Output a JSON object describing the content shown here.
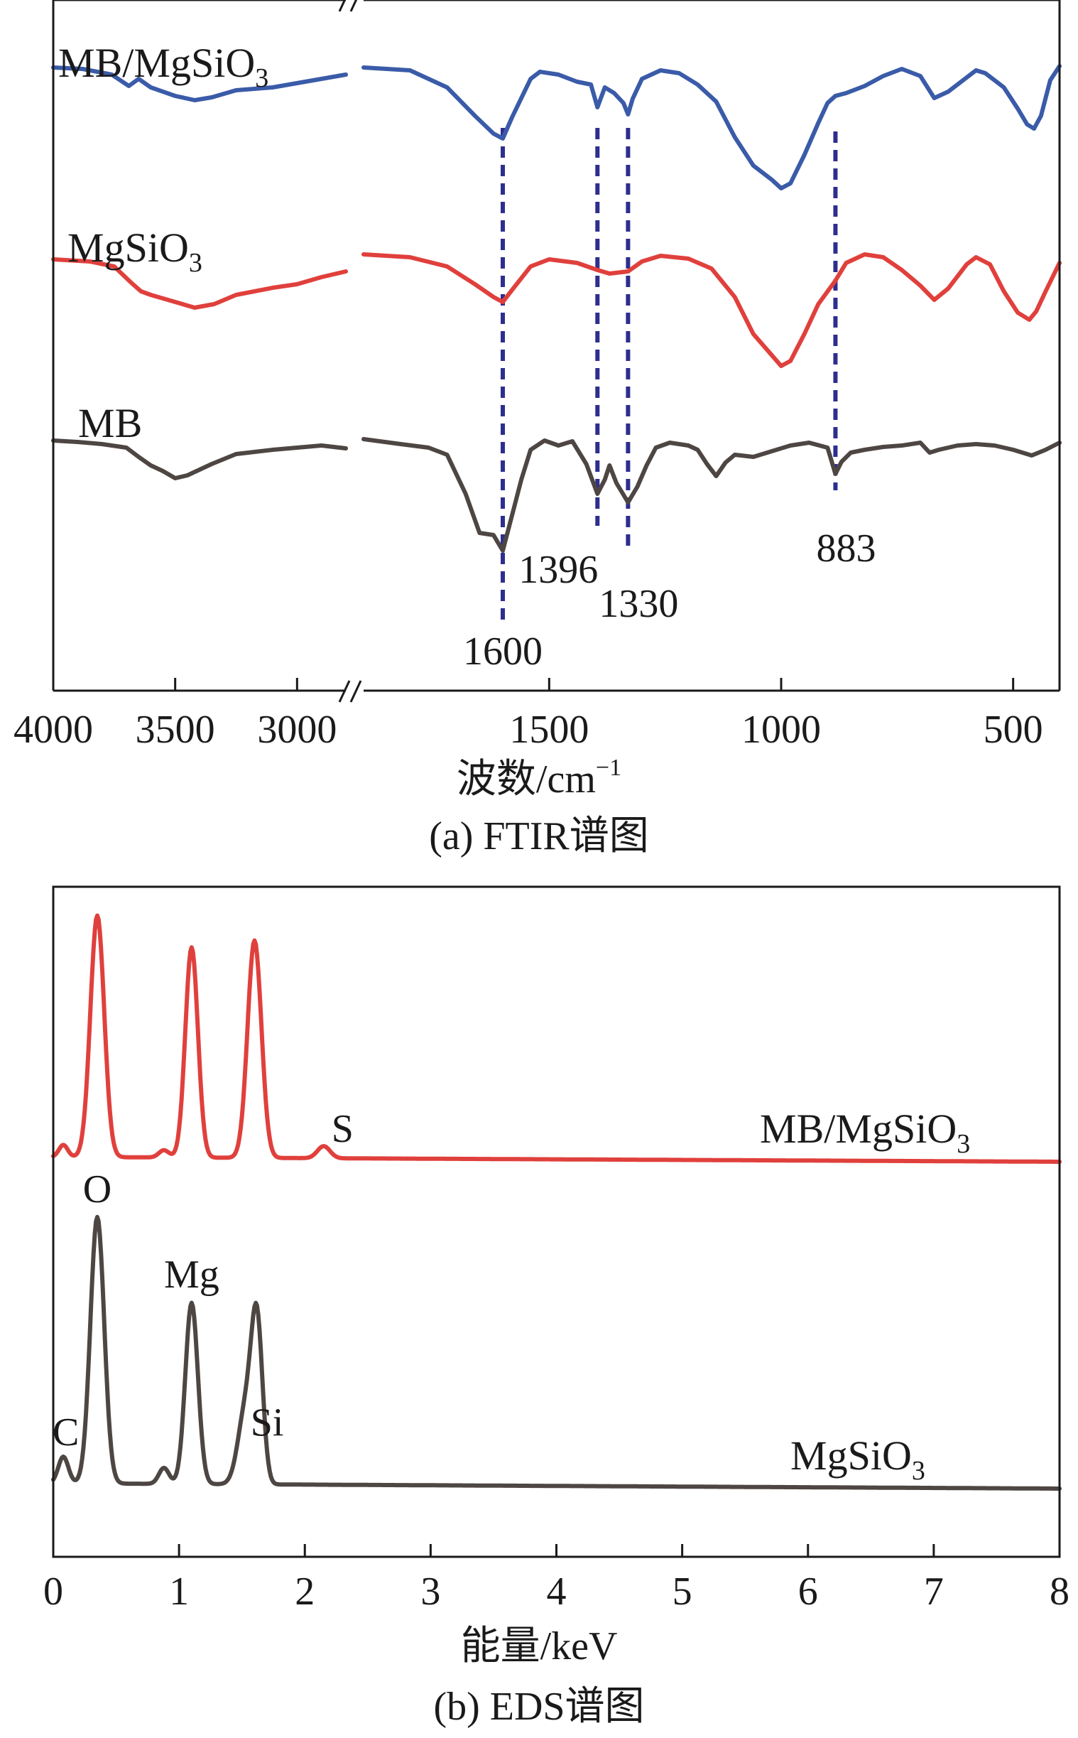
{
  "chart_data": [
    {
      "type": "line",
      "chart": "FTIR",
      "caption": "(a) FTIR谱图",
      "xlabel": "波数/cm",
      "xlabel_sup": "−1",
      "x_ticks": [
        "4000",
        "3500",
        "3000",
        "1500",
        "1000",
        "500"
      ],
      "x_tick_values": [
        4000,
        3500,
        3000,
        1500,
        1000,
        500
      ],
      "x_segments": [
        [
          4000,
          2800
        ],
        [
          1900,
          400
        ]
      ],
      "axis_break": "//",
      "series": [
        {
          "name": "MB/MgSiO",
          "sub": "3",
          "color": "#3a5ba8",
          "points": [
            [
              4000,
              12
            ],
            [
              3880,
              14
            ],
            [
              3760,
              22
            ],
            [
              3690,
              38
            ],
            [
              3650,
              28
            ],
            [
              3600,
              40
            ],
            [
              3500,
              52
            ],
            [
              3420,
              58
            ],
            [
              3350,
              54
            ],
            [
              3250,
              44
            ],
            [
              3100,
              40
            ],
            [
              3000,
              34
            ],
            [
              2900,
              28
            ],
            [
              2800,
              22
            ],
            [
              1900,
              12
            ],
            [
              1800,
              16
            ],
            [
              1720,
              40
            ],
            [
              1660,
              80
            ],
            [
              1620,
              105
            ],
            [
              1600,
              112
            ],
            [
              1580,
              82
            ],
            [
              1540,
              28
            ],
            [
              1520,
              18
            ],
            [
              1480,
              22
            ],
            [
              1440,
              32
            ],
            [
              1410,
              36
            ],
            [
              1396,
              68
            ],
            [
              1380,
              40
            ],
            [
              1360,
              48
            ],
            [
              1340,
              62
            ],
            [
              1330,
              78
            ],
            [
              1320,
              56
            ],
            [
              1300,
              28
            ],
            [
              1260,
              16
            ],
            [
              1220,
              20
            ],
            [
              1180,
              36
            ],
            [
              1140,
              60
            ],
            [
              1100,
              110
            ],
            [
              1060,
              150
            ],
            [
              1020,
              170
            ],
            [
              1000,
              182
            ],
            [
              980,
              175
            ],
            [
              950,
              135
            ],
            [
              920,
              90
            ],
            [
              900,
              62
            ],
            [
              883,
              52
            ],
            [
              860,
              48
            ],
            [
              820,
              38
            ],
            [
              780,
              24
            ],
            [
              740,
              14
            ],
            [
              700,
              24
            ],
            [
              670,
              55
            ],
            [
              640,
              46
            ],
            [
              600,
              26
            ],
            [
              580,
              16
            ],
            [
              560,
              20
            ],
            [
              520,
              40
            ],
            [
              490,
              70
            ],
            [
              470,
              92
            ],
            [
              455,
              98
            ],
            [
              440,
              80
            ],
            [
              420,
              30
            ],
            [
              400,
              10
            ]
          ]
        },
        {
          "name": "MgSiO",
          "sub": "3",
          "color": "#e0403c",
          "points": [
            [
              4000,
              195
            ],
            [
              3850,
              198
            ],
            [
              3750,
              205
            ],
            [
              3680,
              228
            ],
            [
              3640,
              240
            ],
            [
              3600,
              245
            ],
            [
              3500,
              255
            ],
            [
              3420,
              263
            ],
            [
              3340,
              258
            ],
            [
              3250,
              245
            ],
            [
              3100,
              235
            ],
            [
              3000,
              230
            ],
            [
              2900,
              220
            ],
            [
              2800,
              212
            ],
            [
              1900,
              188
            ],
            [
              1800,
              192
            ],
            [
              1720,
              205
            ],
            [
              1660,
              230
            ],
            [
              1620,
              248
            ],
            [
              1600,
              255
            ],
            [
              1580,
              238
            ],
            [
              1540,
              205
            ],
            [
              1500,
              195
            ],
            [
              1440,
              200
            ],
            [
              1396,
              210
            ],
            [
              1370,
              215
            ],
            [
              1330,
              212
            ],
            [
              1300,
              198
            ],
            [
              1260,
              190
            ],
            [
              1200,
              194
            ],
            [
              1150,
              208
            ],
            [
              1100,
              248
            ],
            [
              1060,
              300
            ],
            [
              1020,
              330
            ],
            [
              1000,
              345
            ],
            [
              980,
              338
            ],
            [
              950,
              300
            ],
            [
              920,
              258
            ],
            [
              883,
              225
            ],
            [
              860,
              200
            ],
            [
              820,
              188
            ],
            [
              780,
              192
            ],
            [
              740,
              210
            ],
            [
              700,
              232
            ],
            [
              670,
              252
            ],
            [
              640,
              236
            ],
            [
              600,
              202
            ],
            [
              580,
              192
            ],
            [
              550,
              202
            ],
            [
              520,
              240
            ],
            [
              490,
              270
            ],
            [
              465,
              280
            ],
            [
              450,
              268
            ],
            [
              430,
              240
            ],
            [
              400,
              200
            ]
          ]
        },
        {
          "name": "MB",
          "sub": "",
          "color": "#4d4642",
          "points": [
            [
              4000,
              365
            ],
            [
              3900,
              367
            ],
            [
              3800,
              370
            ],
            [
              3700,
              375
            ],
            [
              3650,
              388
            ],
            [
              3600,
              400
            ],
            [
              3550,
              408
            ],
            [
              3500,
              418
            ],
            [
              3450,
              414
            ],
            [
              3350,
              398
            ],
            [
              3250,
              384
            ],
            [
              3100,
              378
            ],
            [
              3000,
              375
            ],
            [
              2900,
              372
            ],
            [
              2800,
              376
            ],
            [
              1900,
              363
            ],
            [
              1820,
              370
            ],
            [
              1760,
              375
            ],
            [
              1720,
              385
            ],
            [
              1680,
              440
            ],
            [
              1650,
              495
            ],
            [
              1620,
              498
            ],
            [
              1600,
              520
            ],
            [
              1580,
              470
            ],
            [
              1560,
              420
            ],
            [
              1540,
              378
            ],
            [
              1510,
              365
            ],
            [
              1480,
              372
            ],
            [
              1450,
              366
            ],
            [
              1420,
              398
            ],
            [
              1396,
              440
            ],
            [
              1380,
              420
            ],
            [
              1370,
              400
            ],
            [
              1355,
              425
            ],
            [
              1330,
              452
            ],
            [
              1310,
              430
            ],
            [
              1290,
              400
            ],
            [
              1270,
              375
            ],
            [
              1240,
              368
            ],
            [
              1200,
              372
            ],
            [
              1180,
              378
            ],
            [
              1160,
              398
            ],
            [
              1140,
              415
            ],
            [
              1120,
              396
            ],
            [
              1100,
              385
            ],
            [
              1060,
              388
            ],
            [
              1020,
              380
            ],
            [
              980,
              372
            ],
            [
              940,
              368
            ],
            [
              900,
              375
            ],
            [
              883,
              412
            ],
            [
              870,
              395
            ],
            [
              850,
              382
            ],
            [
              820,
              378
            ],
            [
              780,
              374
            ],
            [
              740,
              372
            ],
            [
              700,
              368
            ],
            [
              680,
              382
            ],
            [
              660,
              378
            ],
            [
              620,
              372
            ],
            [
              580,
              370
            ],
            [
              540,
              372
            ],
            [
              500,
              378
            ],
            [
              460,
              386
            ],
            [
              430,
              378
            ],
            [
              400,
              368
            ]
          ]
        }
      ],
      "markers": [
        {
          "value": 1600,
          "label": "1600"
        },
        {
          "value": 1396,
          "label": "1396"
        },
        {
          "value": 1330,
          "label": "1330"
        },
        {
          "value": 883,
          "label": "883"
        }
      ]
    },
    {
      "type": "line",
      "chart": "EDS",
      "caption": "(b) EDS谱图",
      "xlabel": "能量/keV",
      "xlim": [
        0,
        8
      ],
      "x_ticks": [
        "0",
        "1",
        "2",
        "3",
        "4",
        "5",
        "6",
        "7",
        "8"
      ],
      "x_tick_values": [
        0,
        1,
        2,
        3,
        4,
        5,
        6,
        7,
        8
      ],
      "series": [
        {
          "name": "MB/MgSiO",
          "sub": "3",
          "color": "#e0403c",
          "baseline": 0.27,
          "peaks": [
            {
              "center": 0.08,
              "height": 0.05,
              "width": 0.035
            },
            {
              "center": 0.35,
              "height": 1.0,
              "width": 0.055
            },
            {
              "center": 0.88,
              "height": 0.03,
              "width": 0.04
            },
            {
              "center": 1.1,
              "height": 0.87,
              "width": 0.05
            },
            {
              "center": 1.6,
              "height": 0.9,
              "width": 0.055
            },
            {
              "center": 2.15,
              "height": 0.05,
              "width": 0.05
            }
          ],
          "peak_labels": [
            {
              "label": "S",
              "energy": 2.3
            }
          ]
        },
        {
          "name": "MgSiO",
          "sub": "3",
          "color": "#4d4642",
          "baseline": 0.0,
          "peaks": [
            {
              "center": 0.08,
              "height": 0.1,
              "width": 0.04
            },
            {
              "center": 0.35,
              "height": 1.0,
              "width": 0.055
            },
            {
              "center": 0.88,
              "height": 0.06,
              "width": 0.04
            },
            {
              "center": 1.1,
              "height": 0.68,
              "width": 0.05
            },
            {
              "center": 1.53,
              "height": 0.28,
              "width": 0.06
            },
            {
              "center": 1.62,
              "height": 0.58,
              "width": 0.045
            }
          ],
          "peak_labels": [
            {
              "label": "C",
              "energy": 0.1
            },
            {
              "label": "O",
              "energy": 0.35
            },
            {
              "label": "Mg",
              "energy": 1.1
            },
            {
              "label": "Si",
              "energy": 1.7
            }
          ]
        }
      ]
    }
  ]
}
